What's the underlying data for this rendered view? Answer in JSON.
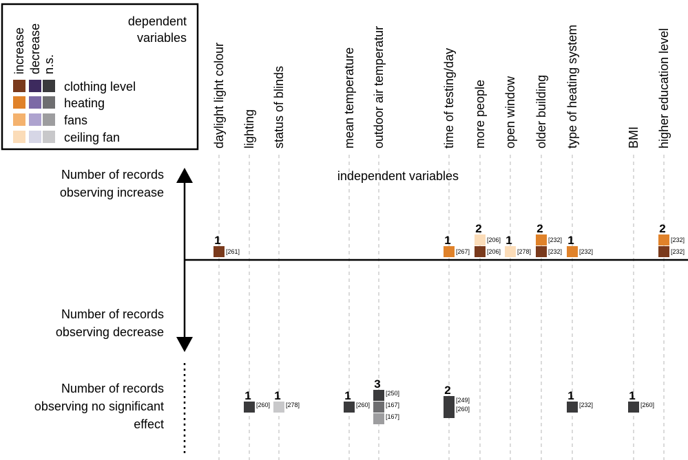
{
  "chart_data": {
    "type": "scatter",
    "legend": {
      "title": "dependent variables",
      "direction_headers": [
        "increase",
        "decrease",
        "n.s."
      ],
      "placement": "top-left",
      "rows": [
        {
          "label": "clothing level",
          "colors": [
            "#7a3a1c",
            "#3d2a5e",
            "#3a3a3c"
          ]
        },
        {
          "label": "heating",
          "colors": [
            "#e0822a",
            "#7c6aa6",
            "#6e6e70"
          ]
        },
        {
          "label": "fans",
          "colors": [
            "#f4b26e",
            "#aea3cf",
            "#9d9d9f"
          ]
        },
        {
          "label": "ceiling fan",
          "colors": [
            "#fbdcb8",
            "#d6d6e6",
            "#c8c8ca"
          ]
        }
      ]
    },
    "x_axis_title": "independent variables",
    "categories": [
      "daylight light colour",
      "lighting",
      "status of blinds",
      "mean temperature",
      "outdoor air temperatur",
      "time of testing/day",
      "more people",
      "open window",
      "older building",
      "type of heating system",
      "BMI",
      "higher education level"
    ],
    "row_labels": {
      "increase": "Number of records observing increase",
      "decrease": "Number of records observing decrease",
      "ns": "Number of records observing no significant effect"
    },
    "increase": [
      {
        "category": "daylight light colour",
        "count": "1",
        "refs": [
          "[261]"
        ],
        "colors": [
          "#7a3a1c"
        ]
      },
      {
        "category": "time of testing/day",
        "count": "1",
        "refs": [
          "[267]"
        ],
        "colors": [
          "#e0822a"
        ]
      },
      {
        "category": "more people",
        "count": "2",
        "refs": [
          "[206]",
          "[206]"
        ],
        "colors": [
          "#7a3a1c",
          "#fbdcb8"
        ]
      },
      {
        "category": "open window",
        "count": "1",
        "refs": [
          "[278]"
        ],
        "colors": [
          "#fbdcb8"
        ]
      },
      {
        "category": "older building",
        "count": "2",
        "refs": [
          "[232]",
          "[232]"
        ],
        "colors": [
          "#7a3a1c",
          "#e0822a"
        ]
      },
      {
        "category": "type of heating system",
        "count": "1",
        "refs": [
          "[232]"
        ],
        "colors": [
          "#e0822a"
        ]
      },
      {
        "category": "higher education level",
        "count": "2",
        "refs": [
          "[232]",
          "[232]"
        ],
        "colors": [
          "#7a3a1c",
          "#e0822a"
        ]
      }
    ],
    "decrease": [],
    "no_significant_effect": [
      {
        "category": "lighting",
        "count": "1",
        "refs": [
          "[260]"
        ],
        "colors": [
          "#3a3a3c"
        ]
      },
      {
        "category": "status of blinds",
        "count": "1",
        "refs": [
          "[278]"
        ],
        "colors": [
          "#c8c8ca"
        ]
      },
      {
        "category": "mean temperature",
        "count": "1",
        "refs": [
          "[260]"
        ],
        "colors": [
          "#3a3a3c"
        ]
      },
      {
        "category": "outdoor air temperatur",
        "count": "3",
        "refs": [
          "[250]",
          "[167]",
          "[167]"
        ],
        "colors": [
          "#3a3a3c",
          "#6e6e70",
          "#9d9d9f"
        ]
      },
      {
        "category": "time of testing/day",
        "count": "2",
        "refs": [
          "[249]",
          "[260]"
        ],
        "colors": [
          "#3a3a3c",
          "#3a3a3c"
        ]
      },
      {
        "category": "type of heating system",
        "count": "1",
        "refs": [
          "[232]"
        ],
        "colors": [
          "#3a3a3c"
        ]
      },
      {
        "category": "BMI",
        "count": "1",
        "refs": [
          "[260]"
        ],
        "colors": [
          "#3a3a3c"
        ]
      }
    ]
  }
}
